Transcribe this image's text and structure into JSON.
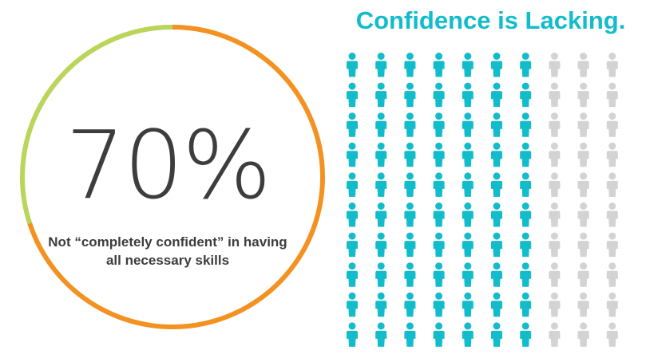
{
  "title": "Confidence is Lacking.",
  "stat": {
    "value_text": "70%",
    "caption": "Not “completely confident” in having all necessary skills"
  },
  "colors": {
    "not_confident": "#f39121",
    "confident": "#b9d55a",
    "people_highlight": "#12bccb",
    "people_rest": "#d3d3d3",
    "text": "#3d3d3d"
  },
  "icon": "person-icon",
  "chart_data": {
    "type": "pie",
    "variant": "donut-ring",
    "slices": [
      {
        "value": 70,
        "color": "#f39121"
      },
      {
        "value": 30,
        "color": "#b9d55a"
      }
    ],
    "pictograph": {
      "columns": 10,
      "rows": 10,
      "highlighted": 70,
      "total": 100,
      "highlight_color": "#12bccb",
      "rest_color": "#d3d3d3"
    }
  }
}
